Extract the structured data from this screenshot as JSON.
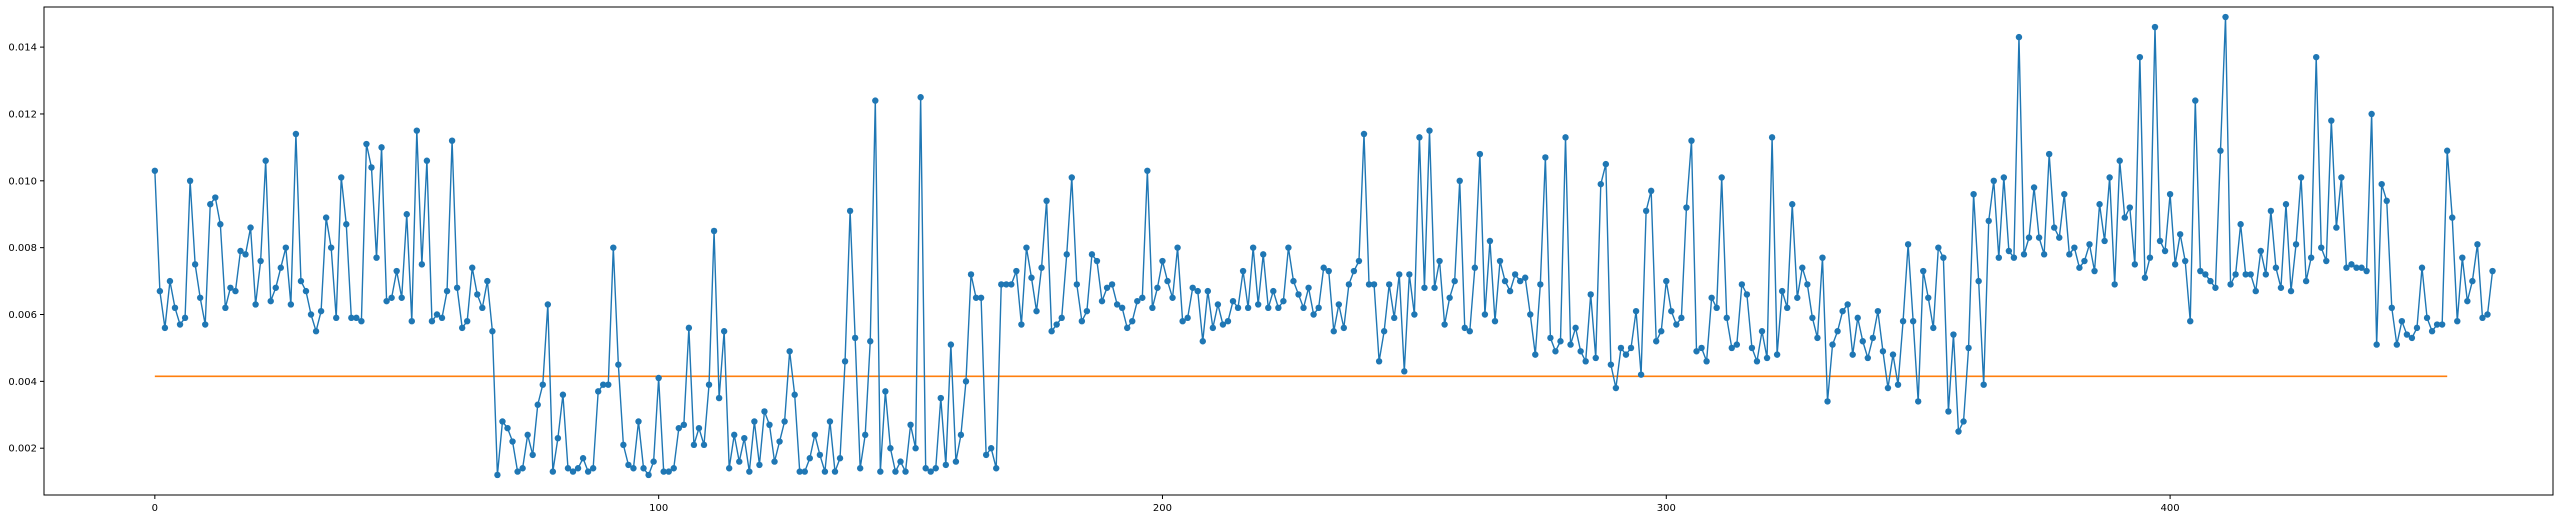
{
  "chart_data": {
    "type": "line",
    "xlim": [
      -22,
      476
    ],
    "ylim": [
      0.0006,
      0.0152
    ],
    "x_ticks": [
      0,
      100,
      200,
      300,
      400
    ],
    "x_tick_labels": [
      "0",
      "100",
      "200",
      "300",
      "400"
    ],
    "y_ticks": [
      0.002,
      0.004,
      0.006,
      0.008,
      0.01,
      0.012,
      0.014
    ],
    "y_tick_labels": [
      "0.002",
      "0.004",
      "0.006",
      "0.008",
      "0.010",
      "0.012",
      "0.014"
    ],
    "grid": false,
    "legend": "none",
    "colors": {
      "series": "#1f77b4",
      "threshold": "#ff7f0e"
    },
    "series": [
      {
        "type": "line-markers",
        "x_start": 0,
        "values": [
          0.0103,
          0.0067,
          0.0056,
          0.007,
          0.0062,
          0.0057,
          0.0059,
          0.01,
          0.0075,
          0.0065,
          0.0057,
          0.0093,
          0.0095,
          0.0087,
          0.0062,
          0.0068,
          0.0067,
          0.0079,
          0.0078,
          0.0086,
          0.0063,
          0.0076,
          0.0106,
          0.0064,
          0.0068,
          0.0074,
          0.008,
          0.0063,
          0.0114,
          0.007,
          0.0067,
          0.006,
          0.0055,
          0.0061,
          0.0089,
          0.008,
          0.0059,
          0.0101,
          0.0087,
          0.0059,
          0.0059,
          0.0058,
          0.0111,
          0.0104,
          0.0077,
          0.011,
          0.0064,
          0.0065,
          0.0073,
          0.0065,
          0.009,
          0.0058,
          0.0115,
          0.0075,
          0.0106,
          0.0058,
          0.006,
          0.0059,
          0.0067,
          0.0112,
          0.0068,
          0.0056,
          0.0058,
          0.0074,
          0.0066,
          0.0062,
          0.007,
          0.0055,
          0.0012,
          0.0028,
          0.0026,
          0.0022,
          0.0013,
          0.0014,
          0.0024,
          0.0018,
          0.0033,
          0.0039,
          0.0063,
          0.0013,
          0.0023,
          0.0036,
          0.0014,
          0.0013,
          0.0014,
          0.0017,
          0.0013,
          0.0014,
          0.0037,
          0.0039,
          0.0039,
          0.008,
          0.0045,
          0.0021,
          0.0015,
          0.0014,
          0.0028,
          0.0014,
          0.0012,
          0.0016,
          0.0041,
          0.0013,
          0.0013,
          0.0014,
          0.0026,
          0.0027,
          0.0056,
          0.0021,
          0.0026,
          0.0021,
          0.0039,
          0.0085,
          0.0035,
          0.0055,
          0.0014,
          0.0024,
          0.0016,
          0.0023,
          0.0013,
          0.0028,
          0.0015,
          0.0031,
          0.0027,
          0.0016,
          0.0022,
          0.0028,
          0.0049,
          0.0036,
          0.0013,
          0.0013,
          0.0017,
          0.0024,
          0.0018,
          0.0013,
          0.0028,
          0.0013,
          0.0017,
          0.0046,
          0.0091,
          0.0053,
          0.0014,
          0.0024,
          0.0052,
          0.0124,
          0.0013,
          0.0037,
          0.002,
          0.0013,
          0.0016,
          0.0013,
          0.0027,
          0.002,
          0.0125,
          0.0014,
          0.0013,
          0.0014,
          0.0035,
          0.0015,
          0.0051,
          0.0016,
          0.0024,
          0.004,
          0.0072,
          0.0065,
          0.0065,
          0.0018,
          0.002,
          0.0014,
          0.0069,
          0.0069,
          0.0069,
          0.0073,
          0.0057,
          0.008,
          0.0071,
          0.0061,
          0.0074,
          0.0094,
          0.0055,
          0.0057,
          0.0059,
          0.0078,
          0.0101,
          0.0069,
          0.0058,
          0.0061,
          0.0078,
          0.0076,
          0.0064,
          0.0068,
          0.0069,
          0.0063,
          0.0062,
          0.0056,
          0.0058,
          0.0064,
          0.0065,
          0.0103,
          0.0062,
          0.0068,
          0.0076,
          0.007,
          0.0065,
          0.008,
          0.0058,
          0.0059,
          0.0068,
          0.0067,
          0.0052,
          0.0067,
          0.0056,
          0.0063,
          0.0057,
          0.0058,
          0.0064,
          0.0062,
          0.0073,
          0.0062,
          0.008,
          0.0063,
          0.0078,
          0.0062,
          0.0067,
          0.0062,
          0.0064,
          0.008,
          0.007,
          0.0066,
          0.0062,
          0.0068,
          0.006,
          0.0062,
          0.0074,
          0.0073,
          0.0055,
          0.0063,
          0.0056,
          0.0069,
          0.0073,
          0.0076,
          0.0114,
          0.0069,
          0.0069,
          0.0046,
          0.0055,
          0.0069,
          0.0059,
          0.0072,
          0.0043,
          0.0072,
          0.006,
          0.0113,
          0.0068,
          0.0115,
          0.0068,
          0.0076,
          0.0057,
          0.0065,
          0.007,
          0.01,
          0.0056,
          0.0055,
          0.0074,
          0.0108,
          0.006,
          0.0082,
          0.0058,
          0.0076,
          0.007,
          0.0067,
          0.0072,
          0.007,
          0.0071,
          0.006,
          0.0048,
          0.0069,
          0.0107,
          0.0053,
          0.0049,
          0.0052,
          0.0113,
          0.0051,
          0.0056,
          0.0049,
          0.0046,
          0.0066,
          0.0047,
          0.0099,
          0.0105,
          0.0045,
          0.0038,
          0.005,
          0.0048,
          0.005,
          0.0061,
          0.0042,
          0.0091,
          0.0097,
          0.0052,
          0.0055,
          0.007,
          0.0061,
          0.0057,
          0.0059,
          0.0092,
          0.0112,
          0.0049,
          0.005,
          0.0046,
          0.0065,
          0.0062,
          0.0101,
          0.0059,
          0.005,
          0.0051,
          0.0069,
          0.0066,
          0.005,
          0.0046,
          0.0055,
          0.0047,
          0.0113,
          0.0048,
          0.0067,
          0.0062,
          0.0093,
          0.0065,
          0.0074,
          0.0069,
          0.0059,
          0.0053,
          0.0077,
          0.0034,
          0.0051,
          0.0055,
          0.0061,
          0.0063,
          0.0048,
          0.0059,
          0.0052,
          0.0047,
          0.0053,
          0.0061,
          0.0049,
          0.0038,
          0.0048,
          0.0039,
          0.0058,
          0.0081,
          0.0058,
          0.0034,
          0.0073,
          0.0065,
          0.0056,
          0.008,
          0.0077,
          0.0031,
          0.0054,
          0.0025,
          0.0028,
          0.005,
          0.0096,
          0.007,
          0.0039,
          0.0088,
          0.01,
          0.0077,
          0.0101,
          0.0079,
          0.0077,
          0.0143,
          0.0078,
          0.0083,
          0.0098,
          0.0083,
          0.0078,
          0.0108,
          0.0086,
          0.0083,
          0.0096,
          0.0078,
          0.008,
          0.0074,
          0.0076,
          0.0081,
          0.0073,
          0.0093,
          0.0082,
          0.0101,
          0.0069,
          0.0106,
          0.0089,
          0.0092,
          0.0075,
          0.0137,
          0.0071,
          0.0077,
          0.0146,
          0.0082,
          0.0079,
          0.0096,
          0.0075,
          0.0084,
          0.0076,
          0.0058,
          0.0124,
          0.0073,
          0.0072,
          0.007,
          0.0068,
          0.0109,
          0.0149,
          0.0069,
          0.0072,
          0.0087,
          0.0072,
          0.0072,
          0.0067,
          0.0079,
          0.0072,
          0.0091,
          0.0074,
          0.0068,
          0.0093,
          0.0067,
          0.0081,
          0.0101,
          0.007,
          0.0077,
          0.0137,
          0.008,
          0.0076,
          0.0118,
          0.0086,
          0.0101,
          0.0074,
          0.0075,
          0.0074,
          0.0074,
          0.0073,
          0.012,
          0.0051,
          0.0099,
          0.0094,
          0.0062,
          0.0051,
          0.0058,
          0.0054,
          0.0053,
          0.0056,
          0.0074,
          0.0059,
          0.0055,
          0.0057,
          0.0057,
          0.0109,
          0.0089,
          0.0058,
          0.0077,
          0.0064,
          0.007,
          0.0081,
          0.0059,
          0.006,
          0.0073
        ]
      },
      {
        "type": "line",
        "x": [
          0,
          455
        ],
        "values": [
          0.00415,
          0.00415
        ]
      }
    ]
  }
}
